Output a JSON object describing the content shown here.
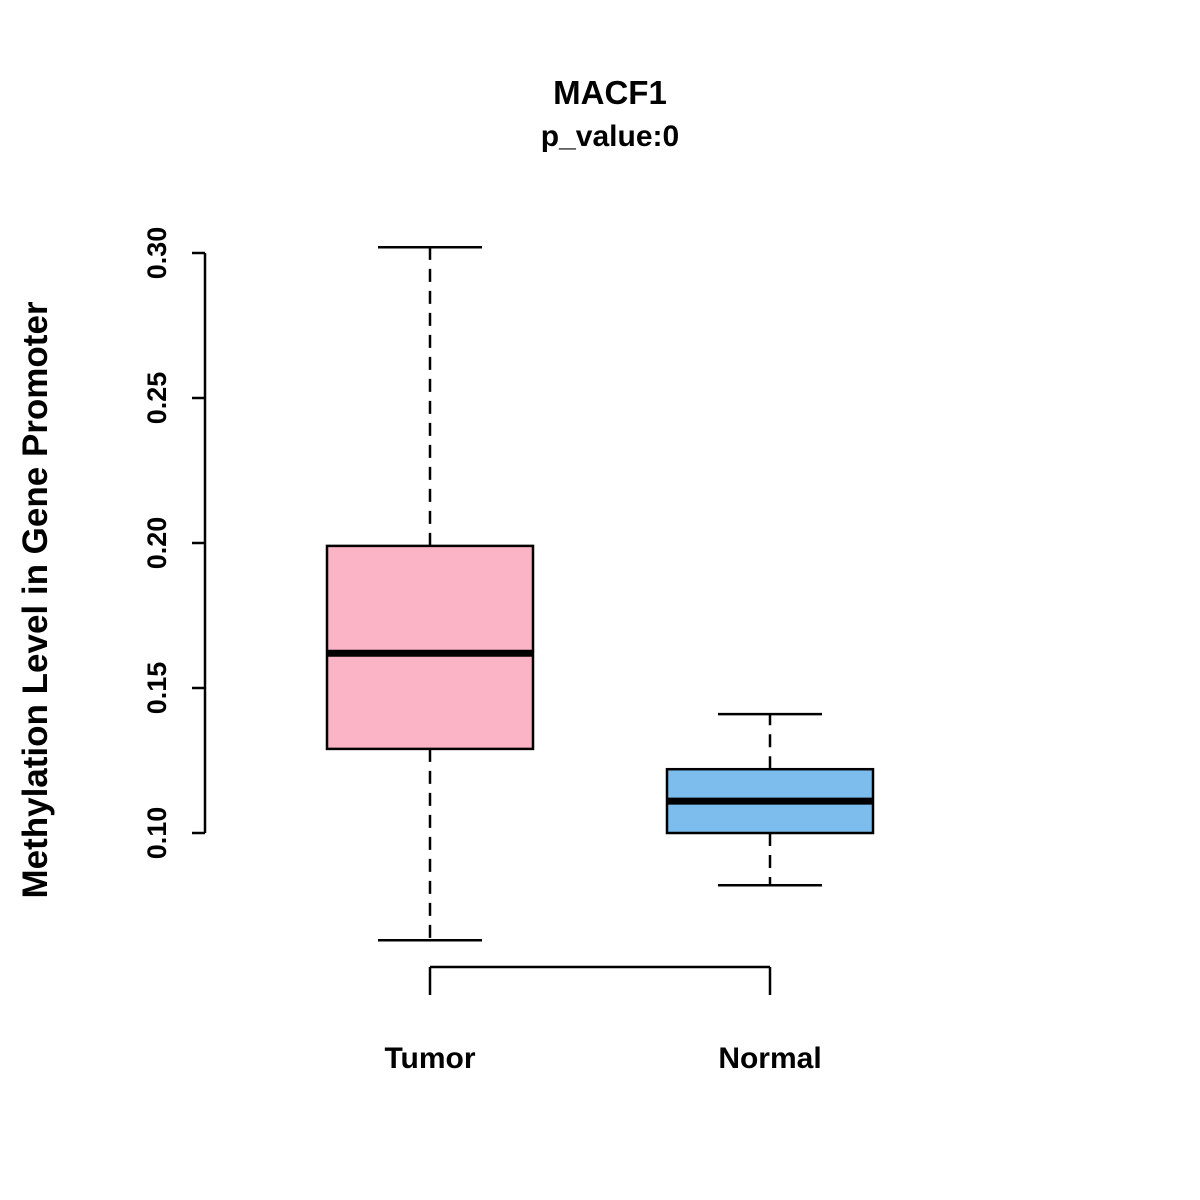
{
  "chart_data": {
    "type": "boxplot",
    "title": "MACF1",
    "subtitle": "p_value:0",
    "ylabel": "Methylation Level in Gene Promoter",
    "xlabel": "",
    "categories": [
      "Tumor",
      "Normal"
    ],
    "series": [
      {
        "name": "Tumor",
        "color": "#FAB4C5",
        "lower_whisker": 0.063,
        "q1": 0.129,
        "median": 0.162,
        "q3": 0.199,
        "upper_whisker": 0.302
      },
      {
        "name": "Normal",
        "color": "#7DBDEE",
        "lower_whisker": 0.082,
        "q1": 0.1,
        "median": 0.111,
        "q3": 0.122,
        "upper_whisker": 0.141
      }
    ],
    "yticks": [
      0.1,
      0.15,
      0.2,
      0.25,
      0.3
    ],
    "ylim": [
      0.06,
      0.31
    ],
    "grid": false,
    "legend": false
  }
}
